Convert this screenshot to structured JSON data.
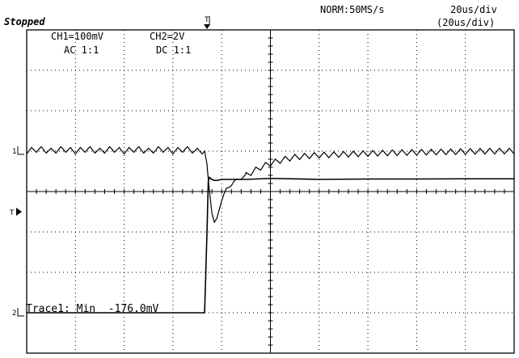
{
  "status": "Stopped",
  "acquisition": {
    "mode_rate": "NORM:50MS/s",
    "timebase": "20us/div",
    "timebase_sub": "(20us/div)"
  },
  "channels": [
    {
      "id": "CH1",
      "scale_label": "CH1=100mV",
      "coupling_label": "AC 1:1",
      "marker": "1"
    },
    {
      "id": "CH2",
      "scale_label": "CH2=2V",
      "coupling_label": "DC 1:1",
      "marker": "2"
    }
  ],
  "trigger_marker": "T",
  "measurement": "Trace1: Min  -176.0mV",
  "chart_data": {
    "type": "line",
    "grid": true,
    "divisions": {
      "x": 10,
      "y": 8
    },
    "xlabel": "",
    "ylabel": "",
    "x_unit": "us",
    "xlim": [
      0,
      200
    ],
    "series": [
      {
        "name": "CH1",
        "units": "mV",
        "ylim": [
          -400,
          400
        ],
        "x": [
          0,
          5,
          10,
          15,
          20,
          25,
          30,
          35,
          40,
          45,
          50,
          55,
          60,
          65,
          70,
          73,
          74,
          75,
          76,
          77,
          78,
          79,
          80,
          81,
          82,
          83,
          84,
          85,
          87,
          90,
          93,
          96,
          100,
          103,
          106,
          110,
          115,
          120,
          130,
          140,
          150,
          160,
          170,
          180,
          190,
          200
        ],
        "y": [
          0,
          5,
          0,
          5,
          0,
          5,
          0,
          5,
          0,
          5,
          0,
          5,
          0,
          5,
          0,
          0,
          -40,
          -100,
          -150,
          -176,
          -170,
          -145,
          -120,
          -105,
          -95,
          -90,
          -82,
          -75,
          -70,
          -60,
          -50,
          -40,
          -30,
          -25,
          -20,
          -15,
          -12,
          -10,
          -8,
          -6,
          -4,
          -3,
          -2,
          -1,
          0,
          0
        ],
        "ripple": {
          "amplitude_mV": 14,
          "period_us": 4
        }
      },
      {
        "name": "CH2",
        "units": "V",
        "ylim": [
          -8,
          8
        ],
        "x": [
          0,
          10,
          20,
          30,
          40,
          50,
          60,
          70,
          73,
          73.5,
          74,
          74.5,
          75,
          76,
          77,
          78,
          80,
          90,
          100,
          120,
          140,
          160,
          180,
          200
        ],
        "y": [
          0,
          0,
          0,
          0,
          0,
          0,
          0,
          0,
          0,
          2.0,
          4.1,
          6.5,
          6.7,
          6.6,
          6.55,
          6.55,
          6.6,
          6.6,
          6.65,
          6.6,
          6.62,
          6.62,
          6.63,
          6.63
        ]
      }
    ]
  },
  "colors": {
    "background": "#ffffff",
    "trace": "#000000",
    "grid": "#000000"
  }
}
